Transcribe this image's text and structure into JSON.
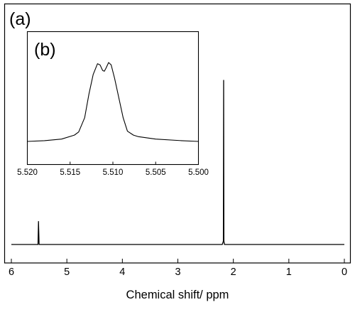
{
  "chart_data": [
    {
      "panel": "(a)",
      "type": "line",
      "title": "",
      "xlabel": "Chemical shift/ ppm",
      "ylabel": "",
      "xlim": [
        6,
        0
      ],
      "x_reversed": true,
      "xticks": [
        6,
        5,
        4,
        3,
        2,
        1,
        0
      ],
      "ylim": [
        0,
        1.1
      ],
      "grid": false,
      "legend": "none",
      "series": [
        {
          "x": [
            6.0,
            5.56,
            5.52,
            5.511,
            5.5,
            5.46,
            2.25,
            2.2,
            2.18,
            2.175,
            2.17,
            2.16,
            2.13,
            0.0
          ],
          "y": [
            0.0,
            0.0,
            0.0,
            0.14,
            0.0,
            0.0,
            0.0,
            0.0,
            0.02,
            1.0,
            0.02,
            0.0,
            0.0,
            0.0
          ]
        }
      ]
    },
    {
      "panel": "(b)",
      "type": "line",
      "title": "",
      "xlabel": "",
      "ylabel": "",
      "xlim": [
        5.52,
        5.5
      ],
      "x_reversed": true,
      "xticks": [
        5.52,
        5.515,
        5.51,
        5.505,
        5.5
      ],
      "xtick_labels": [
        "5.520",
        "5.515",
        "5.510",
        "5.505",
        "5.500"
      ],
      "ylim": [
        0,
        1.1
      ],
      "grid": false,
      "legend": "none",
      "series": [
        {
          "x": [
            5.52,
            5.518,
            5.516,
            5.5145,
            5.514,
            5.5133,
            5.5128,
            5.5123,
            5.5118,
            5.5115,
            5.5112,
            5.511,
            5.5108,
            5.5105,
            5.5102,
            5.5098,
            5.5093,
            5.5088,
            5.5083,
            5.5076,
            5.507,
            5.505,
            5.502,
            5.5
          ],
          "y": [
            0.0,
            0.01,
            0.03,
            0.08,
            0.12,
            0.3,
            0.6,
            0.85,
            0.985,
            0.97,
            0.9,
            0.89,
            0.93,
            1.0,
            0.97,
            0.8,
            0.55,
            0.3,
            0.13,
            0.08,
            0.06,
            0.03,
            0.01,
            0.0
          ]
        }
      ]
    }
  ]
}
